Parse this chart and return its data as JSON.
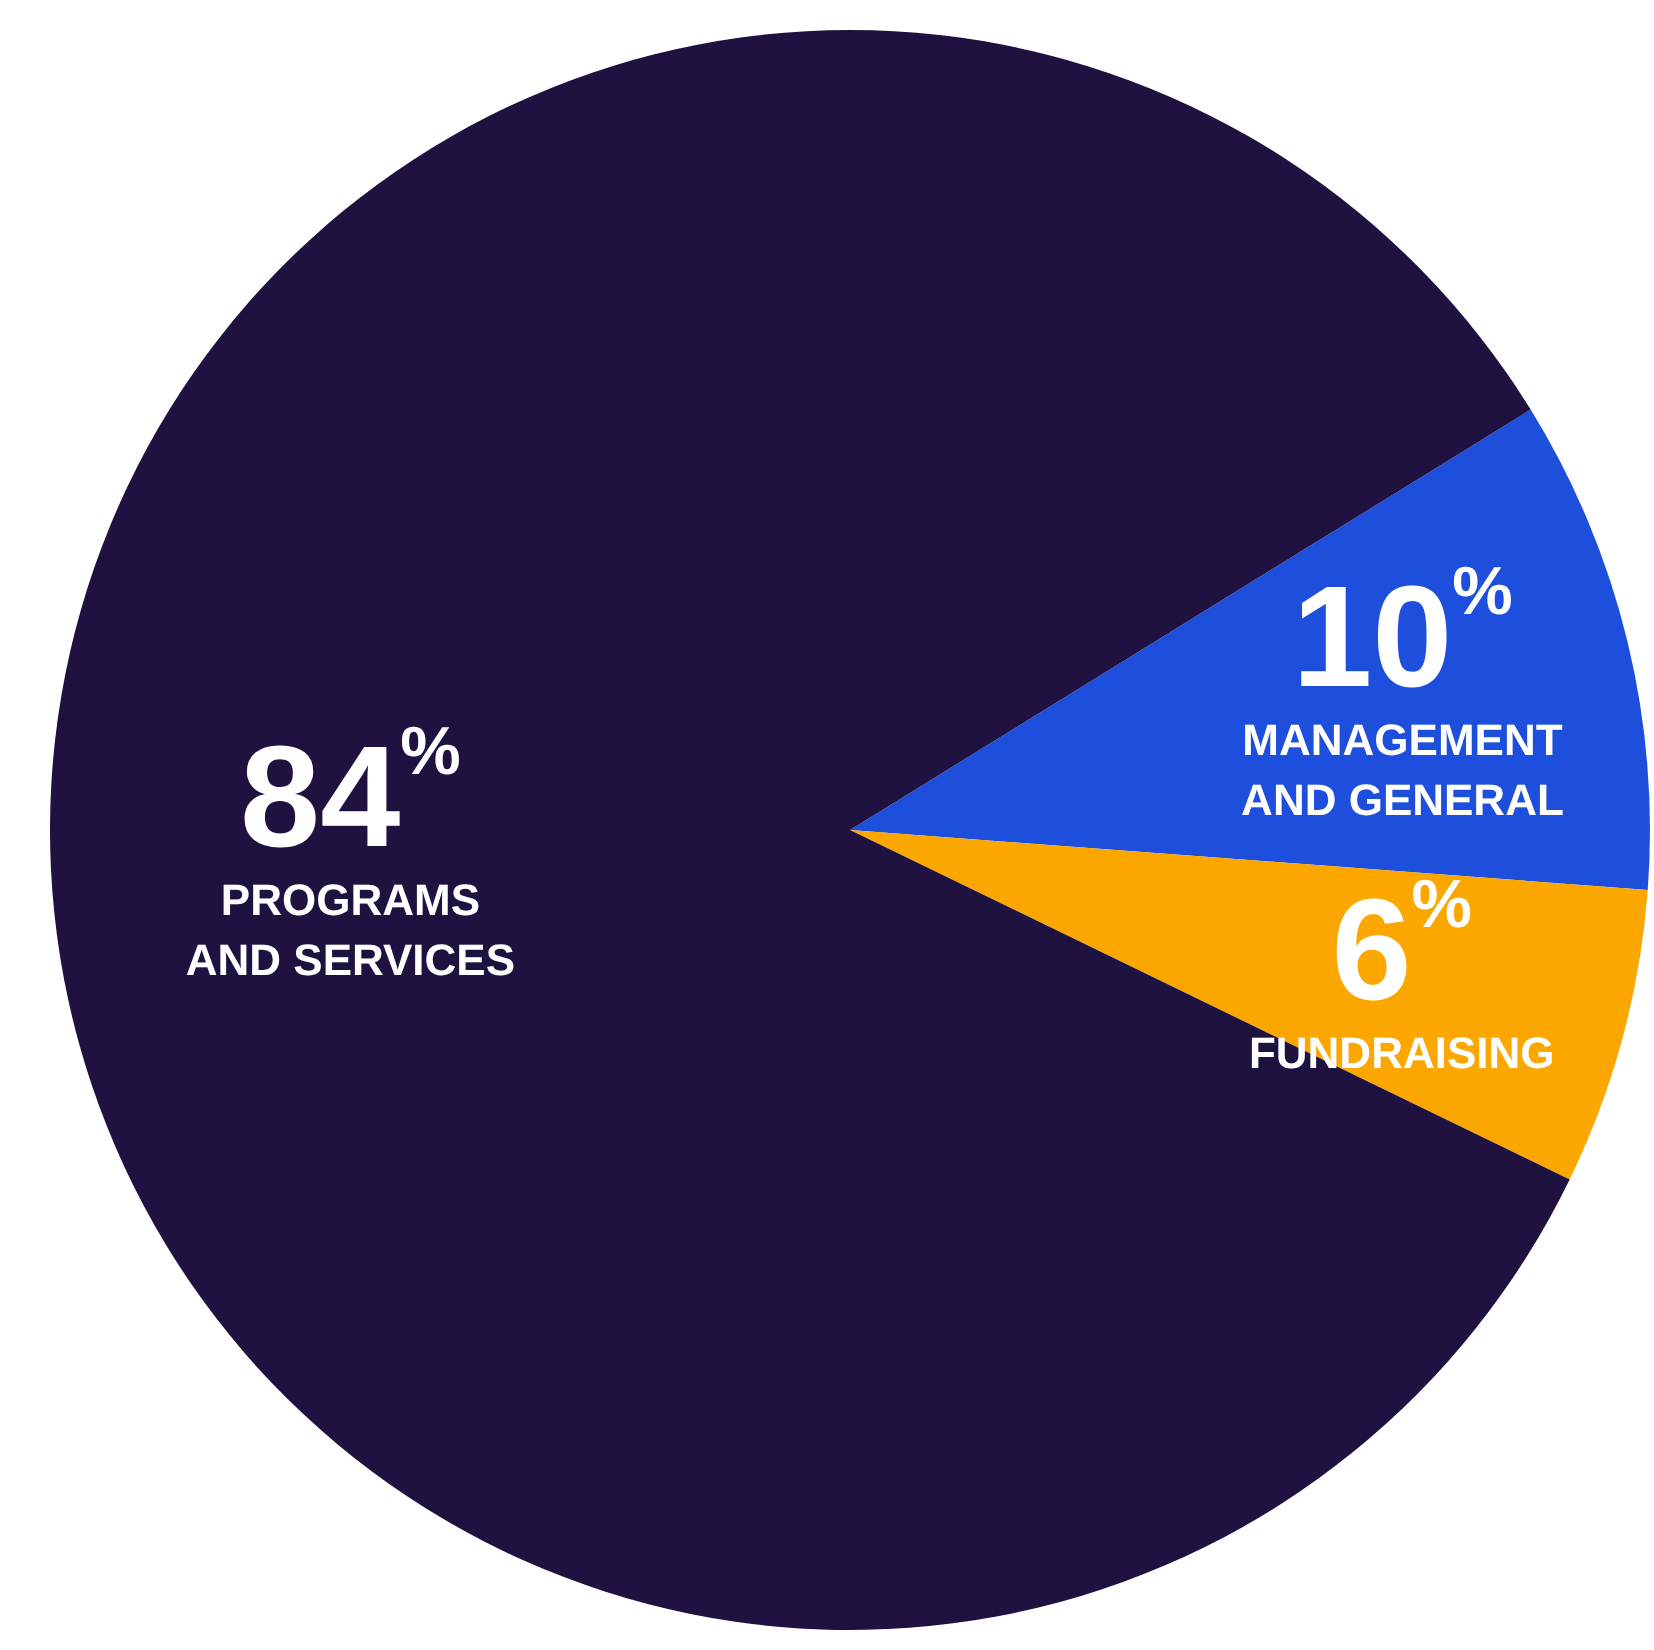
{
  "chart_data": {
    "type": "pie",
    "categories": [
      "MANAGEMENT\nAND GENERAL",
      "FUNDRAISING",
      "PROGRAMS\nAND SERVICES"
    ],
    "values": [
      10,
      6,
      84
    ],
    "value_labels": [
      "10%",
      "6%",
      "84%"
    ],
    "colors": [
      "#1e4fdc",
      "#fca600",
      "#1f1140"
    ]
  }
}
